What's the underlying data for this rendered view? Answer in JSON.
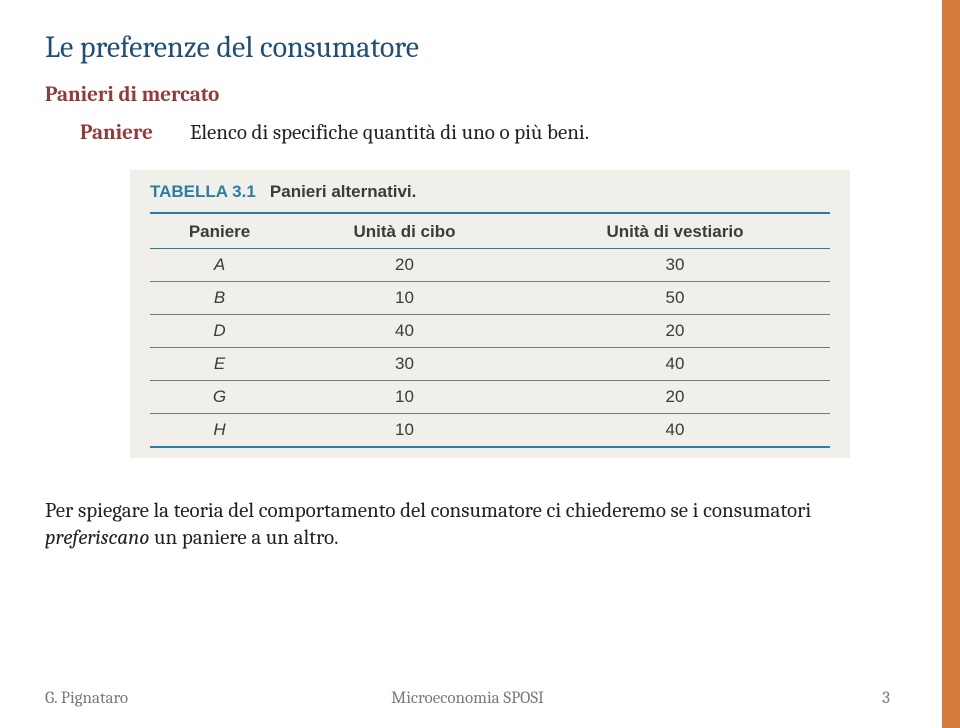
{
  "title": "Le preferenze del consumatore",
  "subtitle": "Panieri di mercato",
  "def": {
    "term": "Paniere",
    "text": "Elenco di specifiche quantità di uno o più beni."
  },
  "table": {
    "label_bold": "TABELLA 3.1",
    "label_rest": "Panieri alternativi.",
    "columns": [
      "Paniere",
      "Unità di cibo",
      "Unità di vestiario"
    ],
    "rows": [
      [
        "A",
        "20",
        "30"
      ],
      [
        "B",
        "10",
        "50"
      ],
      [
        "D",
        "40",
        "20"
      ],
      [
        "E",
        "30",
        "40"
      ],
      [
        "G",
        "10",
        "20"
      ],
      [
        "H",
        "10",
        "40"
      ]
    ],
    "colors": {
      "header_border": "#2a7ea4",
      "row_border": "#7a7a7a",
      "background": "#f1efe9",
      "label_accent": "#2a7ea4",
      "text": "#3b3b3b"
    }
  },
  "explain_pre": "Per spiegare la teoria del comportamento del consumatore ci chiederemo se i consumatori ",
  "explain_em": "preferiscano",
  "explain_post": " un paniere a un altro.",
  "footer": {
    "left": "G. Pignataro",
    "mid": "Microeconomia SPOSI",
    "page": "3"
  },
  "accent_bar_color": "#d47a3a"
}
